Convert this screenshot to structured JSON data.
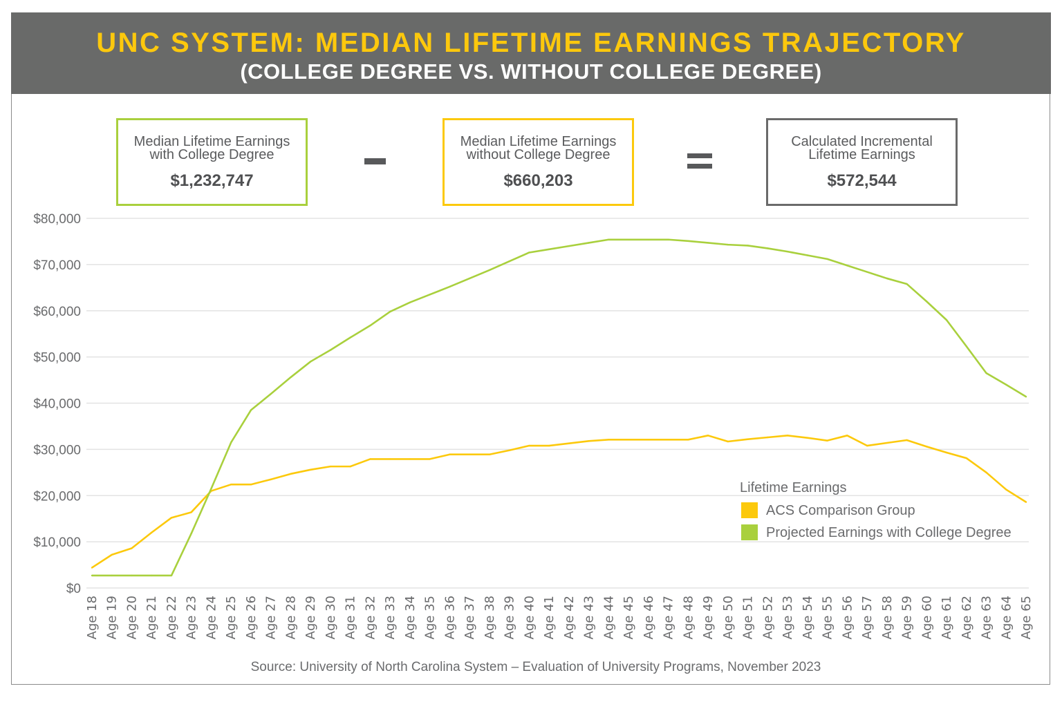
{
  "header": {
    "title": "UNC SYSTEM: MEDIAN LIFETIME EARNINGS TRAJECTORY",
    "subtitle": "(COLLEGE DEGREE VS. WITHOUT COLLEGE DEGREE)"
  },
  "summary": {
    "with_degree": {
      "label_line1": "Median Lifetime Earnings",
      "label_line2": "with College Degree",
      "value": "$1,232,747"
    },
    "without_degree": {
      "label_line1": "Median Lifetime Earnings",
      "label_line2": "without College Degree",
      "value": "$660,203"
    },
    "incremental": {
      "label_line1": "Calculated Incremental",
      "label_line2": "Lifetime Earnings",
      "value": "$572,544"
    }
  },
  "source": "Source: University of North Carolina System – Evaluation of University Programs, November 2023",
  "chart_data": {
    "type": "line",
    "title": "",
    "xlabel": "",
    "ylabel": "",
    "ylim": [
      0,
      80000
    ],
    "y_ticks": [
      0,
      10000,
      20000,
      30000,
      40000,
      50000,
      60000,
      70000,
      80000
    ],
    "y_tick_labels": [
      "$0",
      "$10,000",
      "$20,000",
      "$30,000",
      "$40,000",
      "$50,000",
      "$60,000",
      "$70,000",
      "$80,000"
    ],
    "grid": true,
    "legend": {
      "title": "Lifetime Earnings",
      "placement": "bottom-right"
    },
    "categories": [
      "Age 18",
      "Age 19",
      "Age 20",
      "Age 21",
      "Age 22",
      "Age 23",
      "Age 24",
      "Age 25",
      "Age 26",
      "Age 27",
      "Age 28",
      "Age 29",
      "Age 30",
      "Age 31",
      "Age 32",
      "Age 33",
      "Age 34",
      "Age 35",
      "Age 36",
      "Age 37",
      "Age 38",
      "Age 39",
      "Age 40",
      "Age 41",
      "Age 42",
      "Age 43",
      "Age 44",
      "Age 45",
      "Age 46",
      "Age 47",
      "Age 48",
      "Age 49",
      "Age 50",
      "Age 51",
      "Age 52",
      "Age 53",
      "Age 54",
      "Age 55",
      "Age 56",
      "Age 57",
      "Age 58",
      "Age 59",
      "Age 60",
      "Age 61",
      "Age 62",
      "Age 63",
      "Age 64",
      "Age 65"
    ],
    "series": [
      {
        "name": "ACS Comparison Group",
        "color": "#fcc90c",
        "values": [
          4400,
          7200,
          8600,
          12000,
          15200,
          16400,
          21000,
          22400,
          22400,
          23500,
          24700,
          25600,
          26300,
          26300,
          27900,
          27900,
          27900,
          27900,
          28900,
          28900,
          28900,
          29800,
          30800,
          30800,
          31300,
          31800,
          32100,
          32100,
          32100,
          32100,
          32100,
          33000,
          31700,
          32200,
          32600,
          33000,
          32500,
          31900,
          33000,
          30800,
          31400,
          32000,
          30600,
          29300,
          28100,
          25000,
          21300,
          18600
        ]
      },
      {
        "name": "Projected Earnings with College Degree",
        "color": "#a9d03d",
        "values": [
          2700,
          2700,
          2700,
          2700,
          2700,
          11800,
          21500,
          31500,
          38500,
          42000,
          45600,
          49000,
          51500,
          54200,
          56800,
          59800,
          61800,
          63500,
          65200,
          67000,
          68800,
          70700,
          72600,
          73300,
          74000,
          74700,
          75400,
          75400,
          75400,
          75400,
          75100,
          74700,
          74300,
          74100,
          73500,
          72800,
          72000,
          71200,
          69800,
          68400,
          67000,
          65800,
          62000,
          58000,
          52300,
          46500,
          44000,
          41400
        ]
      }
    ]
  }
}
